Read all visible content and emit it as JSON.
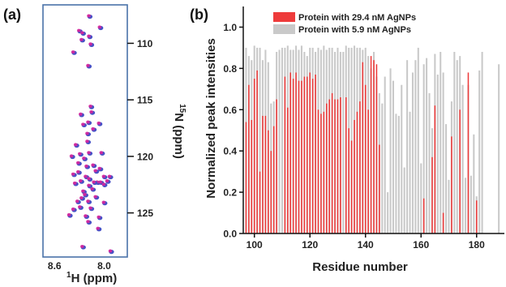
{
  "panel_labels": {
    "a": "(a)",
    "b": "(b)"
  },
  "chart_data": [
    {
      "type": "scatter",
      "panel": "(a)",
      "xlabel_prefix": "1",
      "xlabel": "H (ppm)",
      "ylabel_prefix": "15",
      "ylabel": "N (ppm)",
      "xticks": [
        "8.6",
        "8.0"
      ],
      "yticks": [
        "110",
        "115",
        "120",
        "125"
      ],
      "xlim": [
        8.74,
        7.72
      ],
      "ylim": [
        106.6,
        128.9
      ],
      "colors": {
        "frame": "#4a72a8",
        "series_a": "#d7259b",
        "series_b": "#4751c6"
      },
      "points": [
        [
          8.18,
          107.6
        ],
        [
          8.3,
          108.9
        ],
        [
          8.26,
          109.1
        ],
        [
          8.18,
          109.4
        ],
        [
          8.27,
          109.7
        ],
        [
          8.16,
          110.1
        ],
        [
          8.05,
          108.6
        ],
        [
          8.37,
          110.8
        ],
        [
          8.19,
          112.0
        ],
        [
          8.16,
          115.6
        ],
        [
          8.15,
          116.1
        ],
        [
          8.28,
          116.3
        ],
        [
          8.25,
          117.2
        ],
        [
          8.19,
          117.0
        ],
        [
          8.06,
          117.1
        ],
        [
          8.13,
          117.6
        ],
        [
          8.2,
          118.0
        ],
        [
          8.2,
          118.7
        ],
        [
          8.34,
          119.0
        ],
        [
          8.18,
          119.7
        ],
        [
          8.29,
          119.8
        ],
        [
          8.03,
          119.7
        ],
        [
          8.39,
          120.0
        ],
        [
          8.24,
          120.2
        ],
        [
          8.31,
          120.6
        ],
        [
          8.13,
          120.8
        ],
        [
          8.21,
          120.9
        ],
        [
          8.05,
          121.1
        ],
        [
          8.1,
          121.3
        ],
        [
          8.31,
          121.4
        ],
        [
          8.37,
          121.6
        ],
        [
          8.22,
          121.8
        ],
        [
          8.0,
          121.8
        ],
        [
          7.93,
          121.8
        ],
        [
          8.18,
          122.0
        ],
        [
          8.28,
          122.2
        ],
        [
          8.08,
          122.3
        ],
        [
          8.12,
          122.3
        ],
        [
          8.04,
          122.3
        ],
        [
          7.96,
          122.2
        ],
        [
          8.35,
          122.4
        ],
        [
          8.18,
          122.6
        ],
        [
          8.0,
          122.5
        ],
        [
          8.14,
          122.9
        ],
        [
          8.25,
          123.1
        ],
        [
          8.23,
          123.4
        ],
        [
          8.27,
          123.7
        ],
        [
          8.1,
          123.6
        ],
        [
          8.32,
          124.0
        ],
        [
          8.19,
          124.0
        ],
        [
          8.0,
          124.1
        ],
        [
          8.29,
          124.5
        ],
        [
          8.16,
          124.6
        ],
        [
          8.37,
          124.7
        ],
        [
          8.42,
          125.2
        ],
        [
          8.22,
          125.3
        ],
        [
          8.06,
          125.4
        ],
        [
          8.19,
          125.8
        ],
        [
          8.07,
          126.4
        ],
        [
          8.26,
          128.0
        ],
        [
          7.92,
          128.4
        ]
      ]
    },
    {
      "type": "bar",
      "panel": "(b)",
      "xlabel": "Residue number",
      "ylabel": "Normalized peak intensities",
      "xlim": [
        96,
        190
      ],
      "ylim": [
        0,
        1.1
      ],
      "xticks": [
        "100",
        "120",
        "140",
        "160",
        "180"
      ],
      "yticks": [
        "0.0",
        "0.2",
        "0.4",
        "0.6",
        "0.8",
        "1.0"
      ],
      "legend_position": "top-left",
      "series": [
        {
          "name": "Protein with 29.4 nM AgNPs",
          "color": "#ee3b3b"
        },
        {
          "name": "Protein with 5.9 nM AgNPs",
          "color": "#c9c9c9"
        }
      ],
      "x": [
        97,
        98,
        99,
        100,
        101,
        102,
        103,
        104,
        105,
        106,
        107,
        108,
        109,
        110,
        111,
        112,
        113,
        114,
        115,
        116,
        117,
        118,
        119,
        120,
        121,
        122,
        123,
        124,
        125,
        126,
        127,
        128,
        129,
        130,
        131,
        132,
        133,
        134,
        135,
        136,
        137,
        138,
        139,
        140,
        141,
        142,
        143,
        144,
        145,
        146,
        147,
        148,
        149,
        150,
        151,
        152,
        153,
        154,
        155,
        156,
        157,
        158,
        159,
        160,
        161,
        162,
        163,
        164,
        165,
        166,
        167,
        168,
        169,
        170,
        171,
        172,
        173,
        174,
        175,
        176,
        177,
        178,
        179,
        180,
        181,
        182,
        183,
        184,
        185,
        186,
        187,
        188,
        189
      ],
      "values_gray": [
        0.9,
        0.86,
        0.84,
        0.91,
        0.9,
        0.9,
        0.84,
        0.89,
        0.83,
        0.63,
        0.64,
        0.88,
        0.89,
        0.9,
        0.9,
        0.91,
        0.89,
        0.89,
        0.91,
        0.89,
        0.91,
        0.88,
        0.86,
        0.9,
        0.9,
        0.88,
        0.9,
        0.89,
        0.91,
        0.89,
        0.9,
        0.9,
        0.88,
        0.9,
        0.88,
        0.88,
        0.91,
        0.9,
        0.9,
        0.91,
        0.9,
        0.9,
        0.89,
        0.9,
        0.86,
        0.8,
        0.88,
        0.76,
        0.68,
        0.63,
        0.76,
        0.2,
        0.8,
        0.74,
        0.58,
        0.57,
        0.72,
        0.32,
        0.84,
        0.59,
        0.78,
        0.84,
        0.9,
        0.34,
        0.82,
        0.85,
        0.68,
        0.51,
        0.87,
        0.77,
        0.88,
        0.78,
        0.53,
        0.26,
        0.64,
        0.88,
        0.84,
        0.86,
        0.72,
        0.27,
        0.72,
        0.28,
        0.48,
        0.18,
        0.79,
        0.88,
        0.0,
        0.0,
        0.0,
        0.0,
        0.0,
        0.82,
        0.0
      ],
      "values_red": [
        0.54,
        0.72,
        0.55,
        0.75,
        0.79,
        0.3,
        0.57,
        0.57,
        0.5,
        0.4,
        0.52,
        0.65,
        0.0,
        0.0,
        0.76,
        0.61,
        0.78,
        0.75,
        0.78,
        0.74,
        0.74,
        0.76,
        0.76,
        0.78,
        0.75,
        0.77,
        0.6,
        0.58,
        0.59,
        0.63,
        0.65,
        0.68,
        0.65,
        0.65,
        0.66,
        0.0,
        0.66,
        0.51,
        0.45,
        0.55,
        0.59,
        0.64,
        0.83,
        0.72,
        0.6,
        0.86,
        0.84,
        0.82,
        0.43,
        0.0,
        0.0,
        0.0,
        0.0,
        0.0,
        0.0,
        0.0,
        0.0,
        0.0,
        0.0,
        0.0,
        0.0,
        0.0,
        0.0,
        0.0,
        0.17,
        0.0,
        0.0,
        0.37,
        0.62,
        0.0,
        0.0,
        0.1,
        0.0,
        0.0,
        0.47,
        0.0,
        0.0,
        0.6,
        0.0,
        0.0,
        0.78,
        0.0,
        0.0,
        0.16,
        0.0,
        0.0,
        0.0,
        0.0,
        0.0,
        0.0,
        0.0,
        0.0,
        0.0
      ]
    }
  ]
}
